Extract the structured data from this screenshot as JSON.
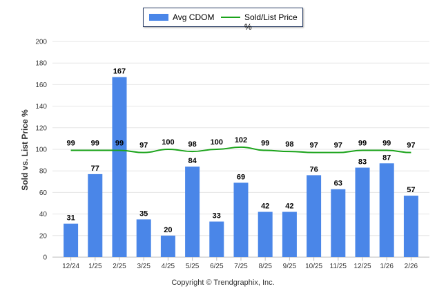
{
  "legend": {
    "bar_label": "Avg CDOM",
    "line_label": "Sold/List Price %"
  },
  "copyright": "Copyright © Trendgraphix, Inc.",
  "chart_data": {
    "type": "bar",
    "title": "",
    "xlabel": "",
    "ylabel": "Sold vs. List Price %",
    "ylim": [
      0,
      200
    ],
    "yticks": [
      0,
      20,
      40,
      60,
      80,
      100,
      120,
      140,
      160,
      180,
      200
    ],
    "grid": true,
    "legend_position": "top-center",
    "categories": [
      "12/24",
      "1/25",
      "2/25",
      "3/25",
      "4/25",
      "5/25",
      "6/25",
      "7/25",
      "8/25",
      "9/25",
      "10/25",
      "11/25",
      "12/25",
      "1/26",
      "2/26"
    ],
    "series": [
      {
        "name": "Avg CDOM",
        "type": "bar",
        "color": "#4a86e8",
        "values": [
          31,
          77,
          167,
          35,
          20,
          84,
          33,
          69,
          42,
          42,
          76,
          63,
          83,
          87,
          57
        ]
      },
      {
        "name": "Sold/List Price %",
        "type": "line",
        "color": "#1aa31a",
        "values": [
          99,
          99,
          99,
          97,
          100,
          98,
          100,
          102,
          99,
          98,
          97,
          97,
          99,
          99,
          97
        ]
      }
    ]
  }
}
